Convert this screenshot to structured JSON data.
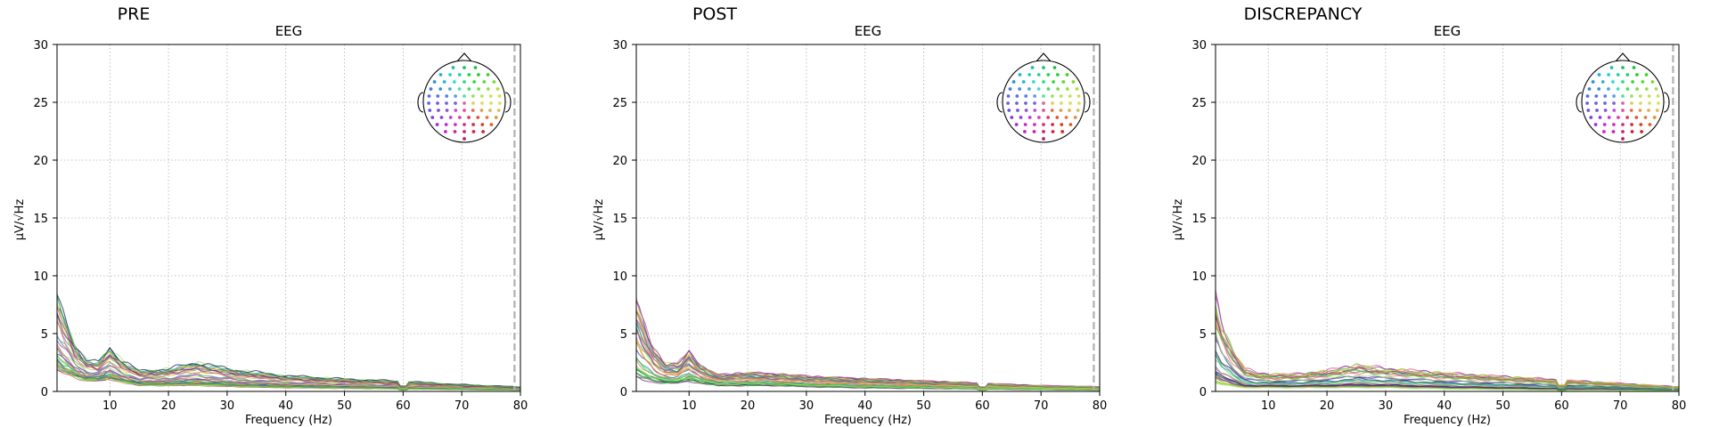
{
  "chart_data": [
    {
      "type": "line",
      "suptitle": "PRE",
      "title": "EEG",
      "xlabel": "Frequency (Hz)",
      "ylabel": "µV/√Hz",
      "xlim": [
        1,
        80
      ],
      "ylim": [
        0,
        30
      ],
      "xticks": [
        10,
        20,
        30,
        40,
        50,
        60,
        70,
        80
      ],
      "yticks": [
        0,
        5,
        10,
        15,
        20,
        25,
        30
      ],
      "grid": true,
      "marker_line_x": 79,
      "sensor_inset": "top-right",
      "series_count": 36,
      "series_note": "per-channel amplitude spectra",
      "profile": {
        "x": [
          1,
          2,
          4,
          6,
          8,
          10,
          12,
          15,
          20,
          25,
          30,
          40,
          50,
          60,
          70,
          80
        ],
        "low": [
          1.8,
          1.5,
          1.2,
          0.9,
          0.9,
          1.0,
          0.8,
          0.5,
          0.5,
          0.5,
          0.4,
          0.3,
          0.25,
          0.2,
          0.15,
          0.1
        ],
        "high": [
          8.5,
          7.0,
          4.2,
          2.8,
          2.5,
          3.9,
          2.8,
          1.8,
          2.0,
          2.6,
          2.0,
          1.4,
          1.1,
          0.9,
          0.6,
          0.4
        ]
      }
    },
    {
      "type": "line",
      "suptitle": "POST",
      "title": "EEG",
      "xlabel": "Frequency (Hz)",
      "ylabel": "µV/√Hz",
      "xlim": [
        1,
        80
      ],
      "ylim": [
        0,
        30
      ],
      "xticks": [
        10,
        20,
        30,
        40,
        50,
        60,
        70,
        80
      ],
      "yticks": [
        0,
        5,
        10,
        15,
        20,
        25,
        30
      ],
      "grid": true,
      "marker_line_x": 79,
      "sensor_inset": "top-right",
      "series_count": 36,
      "series_note": "per-channel amplitude spectra",
      "profile": {
        "x": [
          1,
          2,
          4,
          6,
          8,
          10,
          12,
          15,
          20,
          25,
          30,
          40,
          50,
          60,
          70,
          80
        ],
        "low": [
          1.2,
          1.0,
          0.8,
          0.7,
          0.7,
          0.9,
          0.7,
          0.5,
          0.5,
          0.5,
          0.4,
          0.3,
          0.25,
          0.2,
          0.15,
          0.1
        ],
        "high": [
          7.8,
          6.2,
          3.6,
          2.4,
          2.3,
          3.5,
          2.2,
          1.4,
          1.6,
          1.5,
          1.3,
          1.1,
          0.9,
          0.7,
          0.5,
          0.4
        ]
      }
    },
    {
      "type": "line",
      "suptitle": "DISCREPANCY",
      "title": "EEG",
      "xlabel": "Frequency (Hz)",
      "ylabel": "µV/√Hz",
      "xlim": [
        1,
        80
      ],
      "ylim": [
        0,
        30
      ],
      "xticks": [
        10,
        20,
        30,
        40,
        50,
        60,
        70,
        80
      ],
      "yticks": [
        0,
        5,
        10,
        15,
        20,
        25,
        30
      ],
      "grid": true,
      "marker_line_x": 79,
      "sensor_inset": "top-right",
      "series_count": 36,
      "series_note": "per-channel amplitude spectra",
      "profile": {
        "x": [
          1,
          2,
          4,
          6,
          8,
          10,
          12,
          15,
          20,
          25,
          30,
          40,
          50,
          60,
          70,
          80
        ],
        "low": [
          0.6,
          0.5,
          0.4,
          0.3,
          0.3,
          0.3,
          0.3,
          0.3,
          0.3,
          0.3,
          0.3,
          0.2,
          0.15,
          0.1,
          0.1,
          0.05
        ],
        "high": [
          8.2,
          6.0,
          3.5,
          2.0,
          1.6,
          1.5,
          1.5,
          1.5,
          1.8,
          2.3,
          2.0,
          1.6,
          1.3,
          1.0,
          0.7,
          0.4
        ]
      }
    }
  ],
  "colors": {
    "frame": "#000000",
    "grid": "#b0b0b0",
    "marker_line": "#b0b0b0",
    "channel_palette": [
      "#5fe34a",
      "#3ec93a",
      "#9be36a",
      "#2f9e5a",
      "#3a8fd0",
      "#5b6fd6",
      "#2b3f9b",
      "#7b3fb0",
      "#b0368f",
      "#d64a8a",
      "#e86a5a",
      "#f08c4a",
      "#e0c040",
      "#c8d84a",
      "#1b1b4a",
      "#6a2a6a"
    ]
  }
}
